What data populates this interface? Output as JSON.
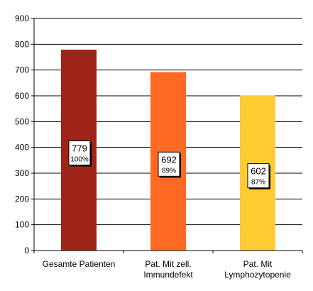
{
  "chart_data": {
    "type": "bar",
    "categories": [
      [
        "Gesamte Patienten"
      ],
      [
        "Pat. Mit zell.",
        "Immundefekt"
      ],
      [
        "Pat. Mit",
        "Lymphozytopenie"
      ]
    ],
    "values": [
      779,
      692,
      602
    ],
    "percent_labels": [
      "100%",
      "89%",
      "87%"
    ],
    "value_labels": [
      "779",
      "692",
      "602"
    ],
    "colors": [
      "#9e2417",
      "#ff6a22",
      "#ffcc33"
    ],
    "ylim": [
      0,
      900
    ],
    "yticks": [
      "0",
      "100",
      "200",
      "300",
      "400",
      "500",
      "600",
      "700",
      "800",
      "900"
    ],
    "grid": true,
    "title": "",
    "xlabel": "",
    "ylabel": ""
  }
}
